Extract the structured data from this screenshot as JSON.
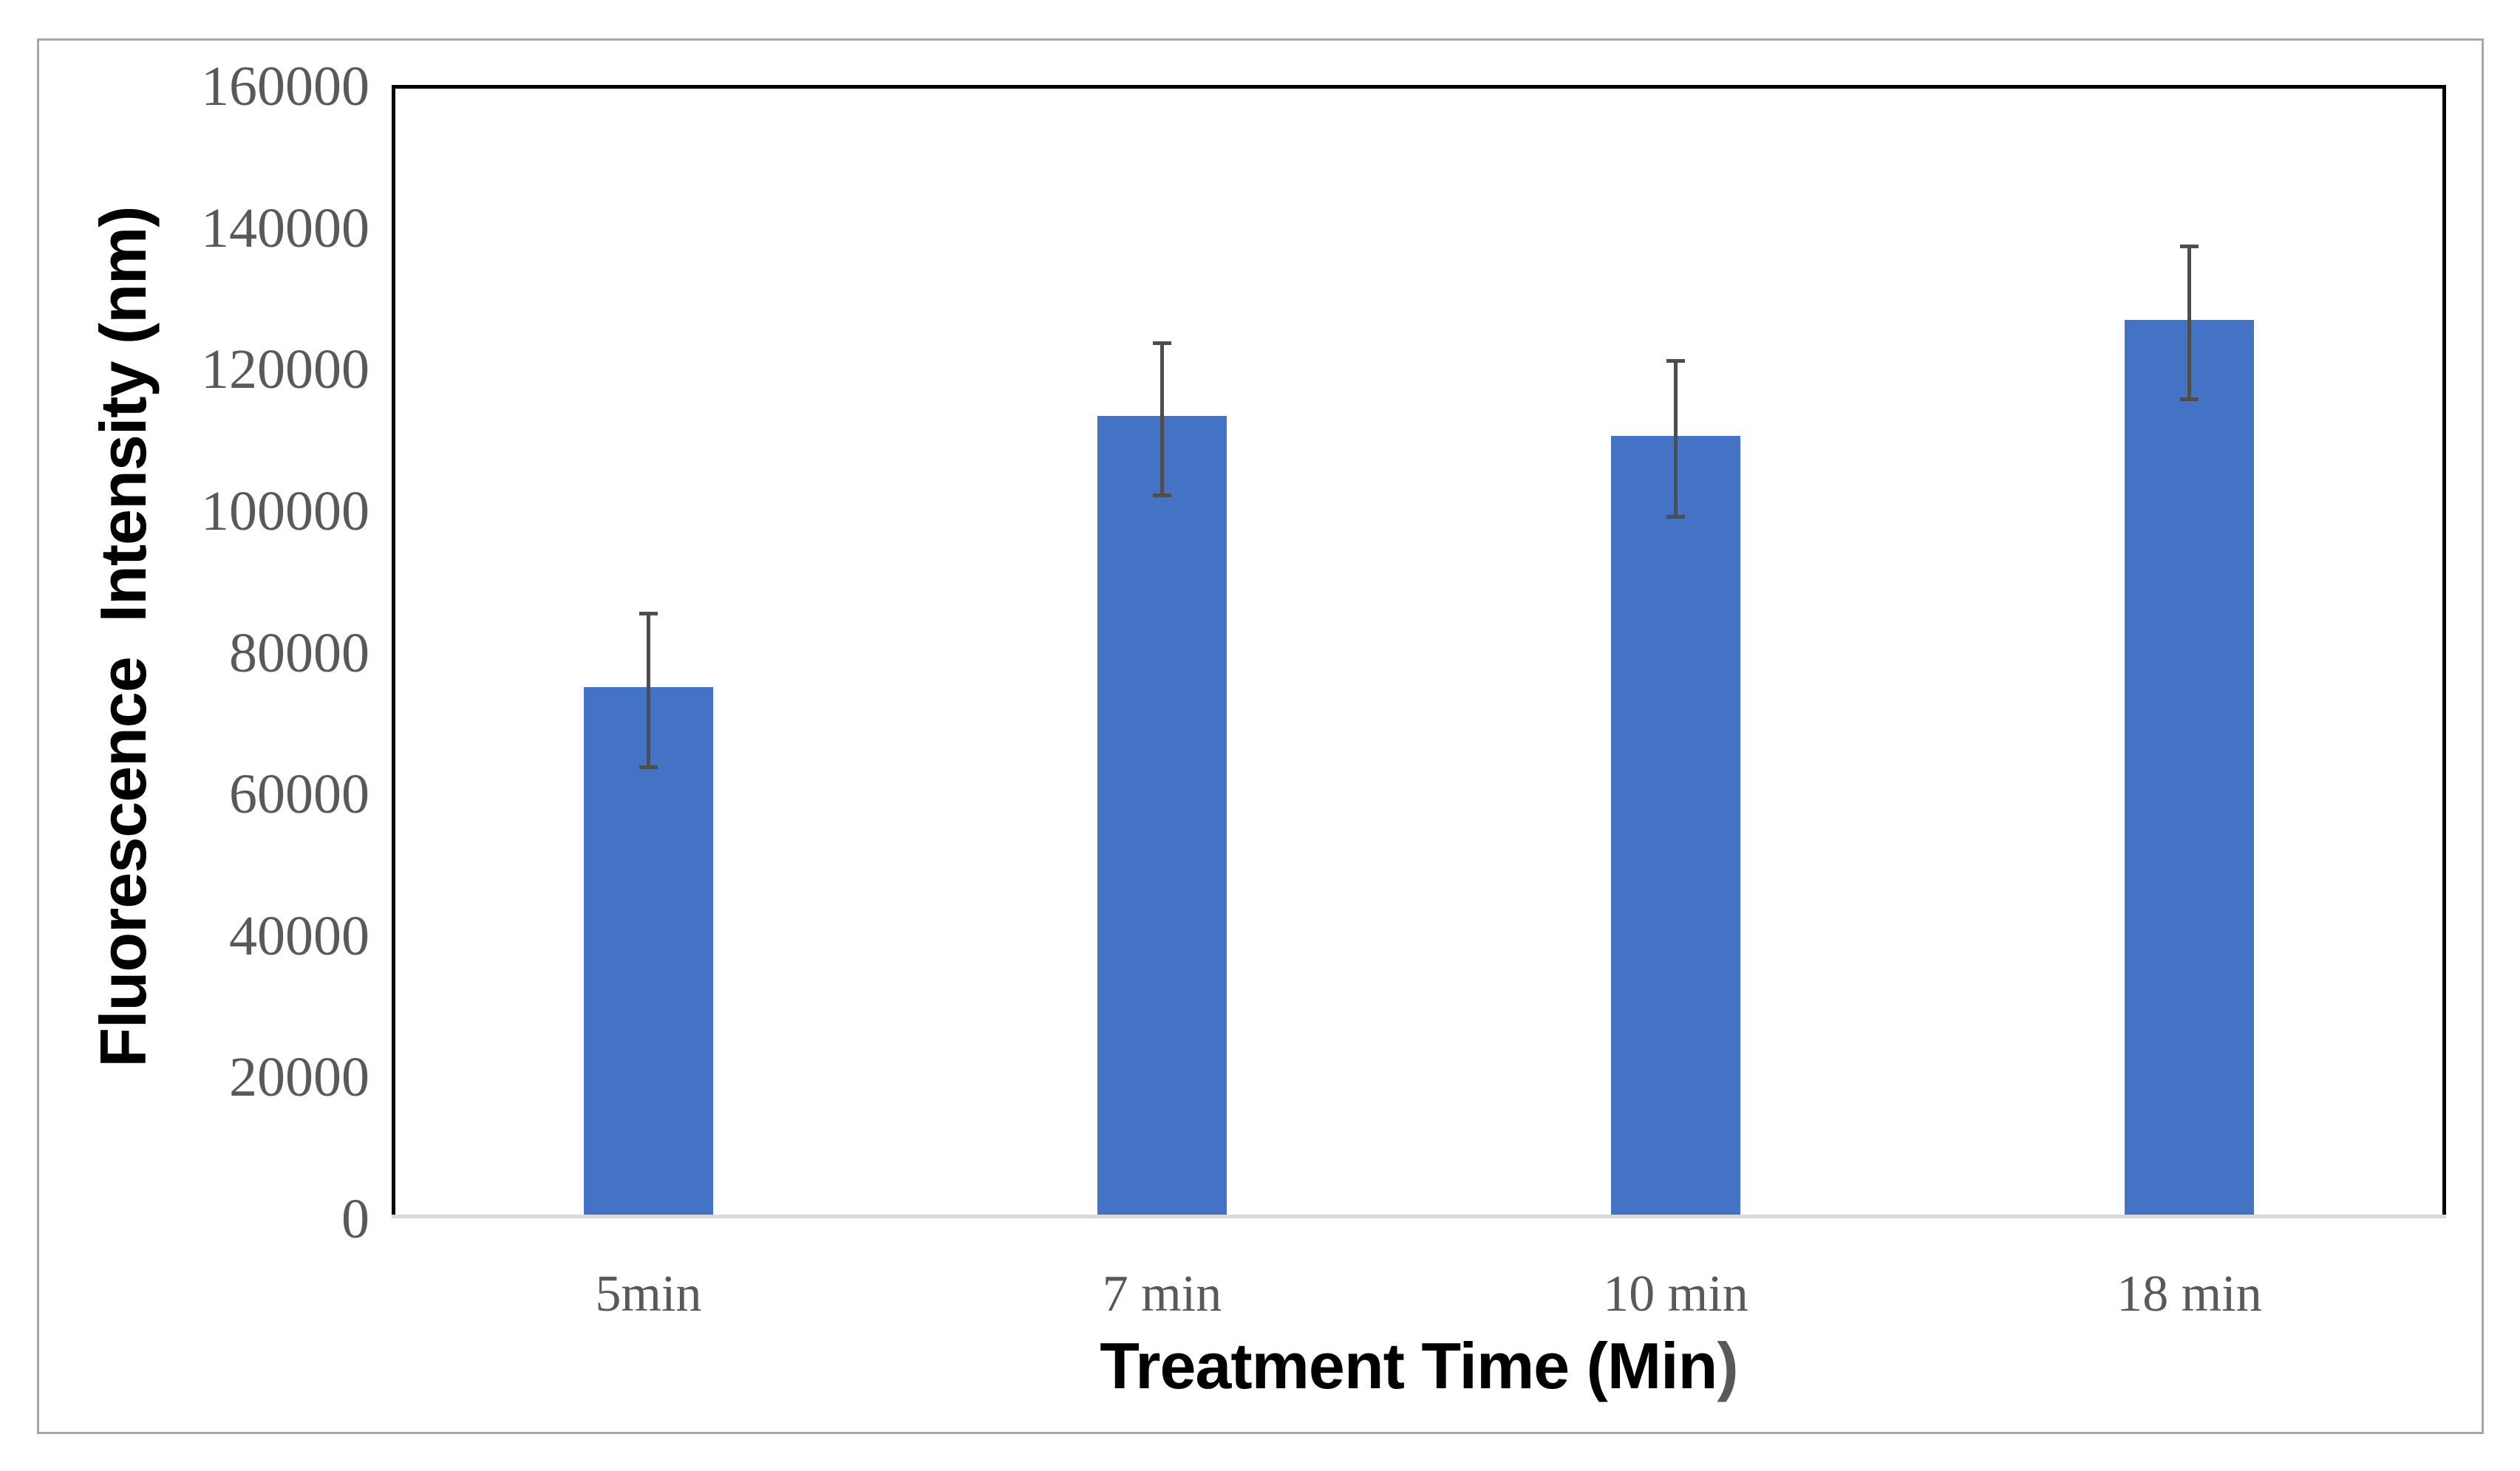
{
  "chart_data": {
    "type": "bar",
    "title": "",
    "categories": [
      "5min",
      "7 min",
      "10 min",
      "18 min"
    ],
    "values": [
      74500,
      112800,
      110000,
      126400
    ],
    "error_bars": [
      11100,
      11000,
      11300,
      11100
    ],
    "xlabel": "Treatment Time (Min)",
    "xlabel_parts": [
      {
        "text": "Treatment Time (Min",
        "color": "#000000"
      },
      {
        "text": ")",
        "color": "#595959"
      }
    ],
    "ylabel": "Fluorescence  Intensity (nm)",
    "ylim": [
      0,
      160000
    ],
    "yticks": [
      0,
      20000,
      40000,
      60000,
      80000,
      100000,
      120000,
      140000,
      160000
    ],
    "grid": false,
    "legend_position": "none",
    "bar_color": "#4472C4",
    "error_bar_color": "#4d4d4d",
    "tick_label_color": "#595959",
    "axis_title_color": "#000000",
    "plot_border_color": "#000000",
    "x_axis_line_color": "#D9D9D9",
    "outer_border_color": "#A6A6A6",
    "background": "#FFFFFF"
  }
}
